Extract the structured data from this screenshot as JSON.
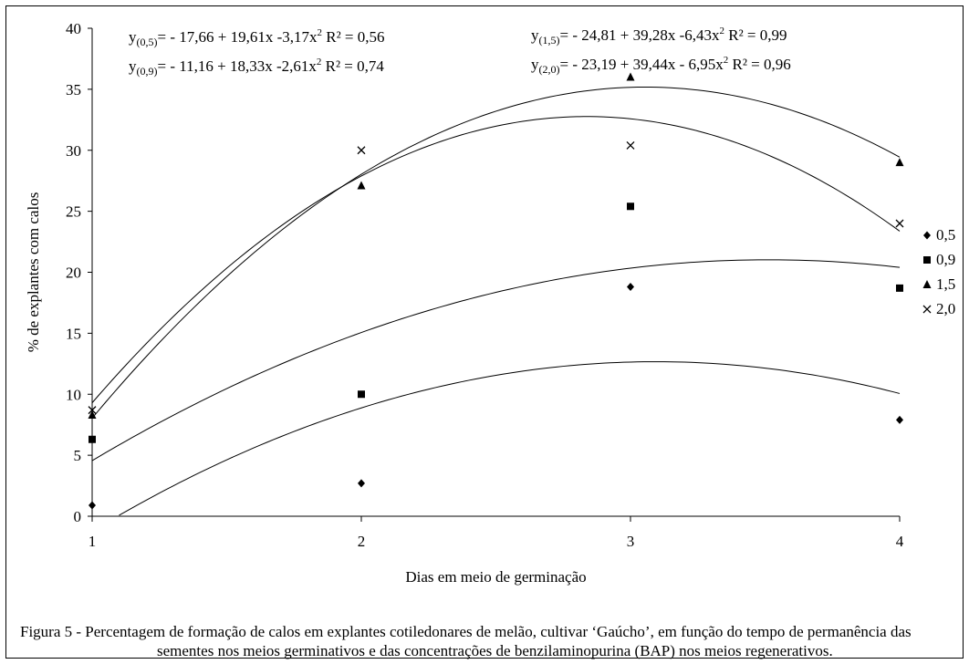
{
  "chart_data": {
    "type": "scatter",
    "xlabel": "Dias em meio de germinação",
    "ylabel": "% de explantes com calos",
    "xlim": [
      1,
      4
    ],
    "ylim": [
      0,
      40
    ],
    "xticks": [
      "1",
      "2",
      "3",
      "4"
    ],
    "yticks": [
      "0",
      "5",
      "10",
      "15",
      "20",
      "25",
      "30",
      "35",
      "40"
    ],
    "grid": false,
    "legend_position": "right",
    "x": [
      1,
      2,
      3,
      4
    ],
    "series": [
      {
        "name": "0,5",
        "marker": "diamond",
        "values": [
          0.9,
          2.7,
          18.8,
          7.9
        ],
        "fit": {
          "a": -17.66,
          "b": 19.61,
          "c": -3.17
        },
        "equation": {
          "label": "y(0,5)",
          "sub": "(0,5)",
          "body": "= - 17,66 + 19,61x -3,17x",
          "r2": "R² = 0,56"
        }
      },
      {
        "name": "0,9",
        "marker": "square",
        "values": [
          6.3,
          10.0,
          25.4,
          18.7
        ],
        "fit": {
          "a": -11.16,
          "b": 18.33,
          "c": -2.61
        },
        "equation": {
          "label": "y(0,9)",
          "sub": "(0,9)",
          "body": "= - 11,16 + 18,33x -2,61x",
          "r2": "R² = 0,74"
        }
      },
      {
        "name": "1,5",
        "marker": "triangle",
        "values": [
          8.3,
          27.1,
          36.0,
          29.0
        ],
        "fit": {
          "a": -24.81,
          "b": 39.28,
          "c": -6.43
        },
        "equation": {
          "label": "y(1,5)",
          "sub": "(1,5)",
          "body": "= - 24,81 + 39,28x -6,43x",
          "r2": "R² = 0,99"
        }
      },
      {
        "name": "2,0",
        "marker": "cross",
        "values": [
          8.7,
          30.0,
          30.4,
          24.0
        ],
        "fit": {
          "a": -23.19,
          "b": 39.44,
          "c": -6.95
        },
        "equation": {
          "label": "y(2,0)",
          "sub": "(2,0)",
          "body": "= - 23,19 + 39,44x - 6,95x",
          "r2": "R² = 0,96"
        }
      }
    ]
  },
  "caption": {
    "prefix": "Figura 5 - ",
    "text": "Percentagem de formação de calos em explantes cotiledonares de melão, cultivar ‘Gaúcho’, em função do tempo de permanência das sementes nos meios germinativos e das concentrações de benzilaminopurina (BAP) nos meios regenerativos."
  }
}
